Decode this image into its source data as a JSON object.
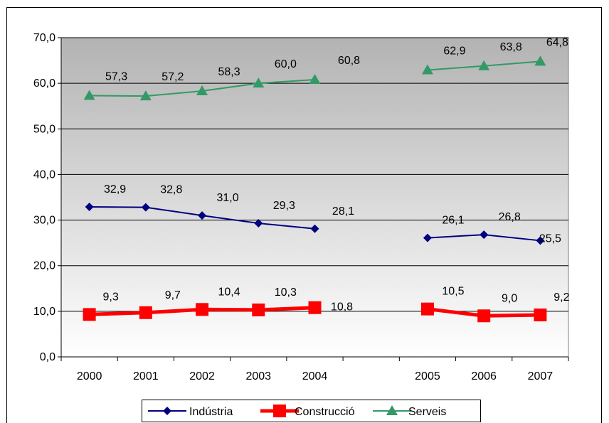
{
  "chart_data": {
    "type": "line",
    "title": "",
    "xlabel": "",
    "ylabel": "",
    "ylim": [
      0,
      70
    ],
    "y_ticks": [
      "0,0",
      "10,0",
      "20,0",
      "30,0",
      "40,0",
      "50,0",
      "60,0",
      "70,0"
    ],
    "categories": [
      "2000",
      "2001",
      "2002",
      "2003",
      "2004",
      "",
      "2005",
      "2006",
      "2007"
    ],
    "grid": true,
    "legend_position": "bottom",
    "background": "vertical gradient from grey (top) to white (bottom)",
    "series": [
      {
        "name": "Indústria",
        "color": "#000080",
        "marker": "diamond",
        "values": [
          32.9,
          32.8,
          31.0,
          29.3,
          28.1,
          null,
          26.1,
          26.8,
          25.5
        ],
        "labels": [
          "32,9",
          "32,8",
          "31,0",
          "29,3",
          "28,1",
          "",
          "26,1",
          "26,8",
          "25,5"
        ]
      },
      {
        "name": "Construcció",
        "color": "#ff0000",
        "marker": "square",
        "values": [
          9.3,
          9.7,
          10.4,
          10.3,
          10.8,
          null,
          10.5,
          9.0,
          9.2
        ],
        "labels": [
          "9,3",
          "9,7",
          "10,4",
          "10,3",
          "10,8",
          "",
          "10,5",
          "9,0",
          "9,2"
        ]
      },
      {
        "name": "Serveis",
        "color": "#339966",
        "marker": "triangle",
        "values": [
          57.3,
          57.2,
          58.3,
          60.0,
          60.8,
          null,
          62.9,
          63.8,
          64.8
        ],
        "labels": [
          "57,3",
          "57,2",
          "58,3",
          "60,0",
          "60,8",
          "",
          "62,9",
          "63,8",
          "64,8"
        ]
      }
    ]
  }
}
